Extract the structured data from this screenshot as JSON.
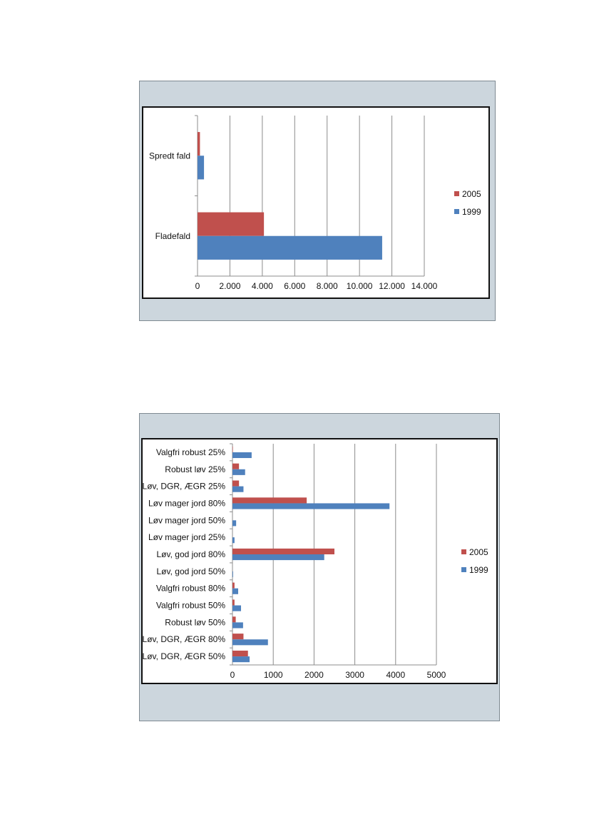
{
  "chart_data": [
    {
      "type": "bar",
      "orientation": "horizontal",
      "categories": [
        "Spredt fald",
        "Fladefald"
      ],
      "series": [
        {
          "name": "2005",
          "color": "#c0504d",
          "values": [
            150,
            4100
          ]
        },
        {
          "name": "1999",
          "color": "#4f81bd",
          "values": [
            400,
            11400
          ]
        }
      ],
      "xlim": [
        0,
        14000
      ],
      "xticks": [
        0,
        2000,
        4000,
        6000,
        8000,
        10000,
        12000,
        14000
      ],
      "xtick_labels": [
        "0",
        "2.000",
        "4.000",
        "6.000",
        "8.000",
        "10.000",
        "12.000",
        "14.000"
      ],
      "grid": "vertical major gridlines",
      "legend": "right",
      "legend_entries": [
        "2005",
        "1999"
      ]
    },
    {
      "type": "bar",
      "orientation": "horizontal",
      "categories": [
        "Valgfri robust 25%",
        "Robust løv 25%",
        "Løv, DGR, ÆGR 25%",
        "Løv mager jord 80%",
        "Løv mager jord 50%",
        "Løv mager jord 25%",
        "Løv, god jord 80%",
        "Løv, god jord 50%",
        "Valgfri robust 80%",
        "Valgfri robust 50%",
        "Robust løv 50%",
        "Løv, DGR, ÆGR 80%",
        "Løv, DGR, ÆGR 50%"
      ],
      "series": [
        {
          "name": "2005",
          "color": "#c0504d",
          "values": [
            10,
            160,
            160,
            1820,
            0,
            0,
            2500,
            0,
            50,
            50,
            80,
            270,
            380
          ]
        },
        {
          "name": "1999",
          "color": "#4f81bd",
          "values": [
            470,
            310,
            270,
            3850,
            90,
            50,
            2250,
            15,
            140,
            210,
            260,
            870,
            420
          ]
        }
      ],
      "xlim": [
        0,
        5000
      ],
      "xticks": [
        0,
        1000,
        2000,
        3000,
        4000,
        5000
      ],
      "xtick_labels": [
        "0",
        "1000",
        "2000",
        "3000",
        "4000",
        "5000"
      ],
      "grid": "vertical major gridlines",
      "legend": "right",
      "legend_entries": [
        "2005",
        "1999"
      ]
    }
  ]
}
